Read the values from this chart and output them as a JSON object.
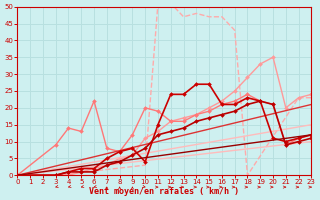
{
  "title": "",
  "xlabel": "Vent moyen/en rafales ( km/h )",
  "ylabel": "",
  "bg_color": "#cef0f0",
  "grid_color": "#b8e0e0",
  "xlim": [
    0,
    23
  ],
  "ylim": [
    0,
    50
  ],
  "xticks": [
    0,
    1,
    2,
    3,
    4,
    5,
    6,
    7,
    8,
    9,
    10,
    11,
    12,
    13,
    14,
    15,
    16,
    17,
    18,
    19,
    20,
    21,
    22,
    23
  ],
  "yticks": [
    0,
    5,
    10,
    15,
    20,
    25,
    30,
    35,
    40,
    45,
    50
  ],
  "series": [
    {
      "comment": "light pink dashed going very high ~50 at x=11-12",
      "x": [
        0,
        3,
        10,
        11,
        12,
        13,
        14,
        15,
        16,
        17,
        18,
        22,
        23
      ],
      "y": [
        0,
        0,
        3,
        51,
        51,
        47,
        48,
        47,
        47,
        43,
        0,
        23,
        23
      ],
      "color": "#ffaaaa",
      "lw": 1.0,
      "marker": null,
      "ms": 0,
      "ls": "--"
    },
    {
      "comment": "medium pink with small diamond markers going to ~35 at x=20",
      "x": [
        0,
        3,
        4,
        5,
        6,
        7,
        8,
        9,
        10,
        11,
        12,
        13,
        14,
        15,
        16,
        17,
        18,
        19,
        20,
        21,
        22,
        23
      ],
      "y": [
        0,
        0,
        0,
        1,
        2,
        3,
        5,
        6,
        11,
        13,
        16,
        17,
        18,
        20,
        22,
        25,
        29,
        33,
        35,
        20,
        23,
        24
      ],
      "color": "#ff9999",
      "lw": 1.0,
      "marker": "D",
      "ms": 2.0,
      "ls": "-"
    },
    {
      "comment": "light pink no marker diagonal line to ~15",
      "x": [
        0,
        23
      ],
      "y": [
        0,
        15
      ],
      "color": "#ffbbbb",
      "lw": 1.0,
      "marker": null,
      "ms": 0,
      "ls": "-"
    },
    {
      "comment": "light pink no marker diagonal line to ~10",
      "x": [
        0,
        23
      ],
      "y": [
        0,
        10
      ],
      "color": "#ffbbbb",
      "lw": 1.0,
      "marker": null,
      "ms": 0,
      "ls": "-"
    },
    {
      "comment": "pink with markers zigzag ~22 peak at x=6 then again x=10",
      "x": [
        0,
        3,
        4,
        5,
        6,
        7,
        8,
        9,
        10,
        11,
        12,
        13,
        14,
        15,
        16,
        17,
        18,
        19,
        20,
        21,
        22,
        23
      ],
      "y": [
        0,
        9,
        14,
        13,
        22,
        8,
        7,
        12,
        20,
        19,
        16,
        16,
        18,
        19,
        21,
        22,
        24,
        22,
        21,
        9,
        11,
        12
      ],
      "color": "#ff7777",
      "lw": 1.0,
      "marker": "D",
      "ms": 2.0,
      "ls": "-"
    },
    {
      "comment": "medium red line straight diagonal to ~21",
      "x": [
        0,
        23
      ],
      "y": [
        0,
        21
      ],
      "color": "#dd3333",
      "lw": 1.0,
      "marker": null,
      "ms": 0,
      "ls": "-"
    },
    {
      "comment": "red with markers - peak ~27 at x=13-14 then drops",
      "x": [
        0,
        3,
        4,
        5,
        6,
        7,
        8,
        9,
        10,
        11,
        12,
        13,
        14,
        15,
        16,
        17,
        18,
        19,
        20,
        21,
        22,
        23
      ],
      "y": [
        0,
        0,
        1,
        2,
        2,
        5,
        7,
        8,
        4,
        15,
        24,
        24,
        27,
        27,
        21,
        21,
        23,
        22,
        11,
        10,
        11,
        12
      ],
      "color": "#cc0000",
      "lw": 1.2,
      "marker": "D",
      "ms": 2.0,
      "ls": "-"
    },
    {
      "comment": "darker red with markers - moderate rise ~22 at x=20",
      "x": [
        0,
        3,
        4,
        5,
        6,
        7,
        8,
        9,
        10,
        11,
        12,
        13,
        14,
        15,
        16,
        17,
        18,
        19,
        20,
        21,
        22,
        23
      ],
      "y": [
        0,
        0,
        1,
        1,
        1,
        3,
        4,
        6,
        8,
        12,
        13,
        14,
        16,
        17,
        18,
        19,
        21,
        22,
        21,
        9,
        10,
        11
      ],
      "color": "#bb0000",
      "lw": 1.2,
      "marker": "D",
      "ms": 2.0,
      "ls": "-"
    },
    {
      "comment": "dark red straight line to ~12",
      "x": [
        0,
        23
      ],
      "y": [
        0,
        12
      ],
      "color": "#990000",
      "lw": 1.0,
      "marker": null,
      "ms": 0,
      "ls": "-"
    }
  ],
  "wind_symbols": {
    "x": [
      3,
      4,
      5,
      6,
      7,
      8,
      9,
      10,
      11,
      12,
      13,
      14,
      15,
      16,
      17,
      18,
      19,
      20,
      21,
      22,
      23
    ],
    "dirs": [
      "nw",
      "nw",
      "nw",
      "nw",
      "n",
      "n",
      "n",
      "ne",
      "e",
      "e",
      "e",
      "e",
      "e",
      "e",
      "e",
      "e",
      "e",
      "e",
      "e",
      "e",
      "e"
    ]
  },
  "axis_color": "#cc0000",
  "tick_color": "#cc0000",
  "label_color": "#cc0000"
}
